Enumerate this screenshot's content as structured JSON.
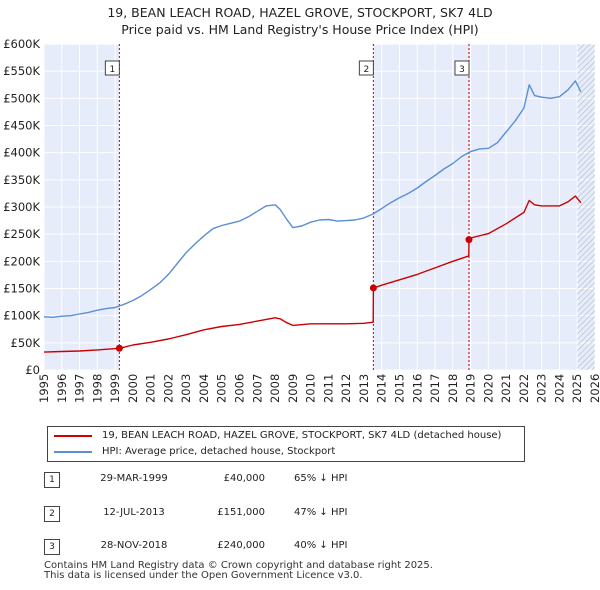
{
  "title_line1": "19, BEAN LEACH ROAD, HAZEL GROVE, STOCKPORT, SK7 4LD",
  "title_line2": "Price paid vs. HM Land Registry's House Price Index (HPI)",
  "colors": {
    "hpi": "#5b8fd4",
    "price": "#cc0000",
    "band": "#e6ecfa",
    "grid": "#ffffff",
    "marker_border": "#444444",
    "hatch": "#b0b8c8"
  },
  "legend": {
    "price_label": "19, BEAN LEACH ROAD, HAZEL GROVE, STOCKPORT, SK7 4LD (detached house)",
    "hpi_label": "HPI: Average price, detached house, Stockport"
  },
  "sales": [
    {
      "num": "1",
      "date": "29-MAR-1999",
      "price": "£40,000",
      "hpi_note": "65% ↓ HPI"
    },
    {
      "num": "2",
      "date": "12-JUL-2013",
      "price": "£151,000",
      "hpi_note": "47% ↓ HPI"
    },
    {
      "num": "3",
      "date": "28-NOV-2018",
      "price": "£240,000",
      "hpi_note": "40% ↓ HPI"
    }
  ],
  "footer": {
    "line1": "Contains HM Land Registry data © Crown copyright and database right 2025.",
    "line2": "This data is licensed under the Open Government Licence v3.0."
  },
  "chart_data": {
    "type": "line",
    "title": "19, BEAN LEACH ROAD, HAZEL GROVE, STOCKPORT, SK7 4LD — Price paid vs. HM Land Registry's House Price Index (HPI)",
    "xlabel": "",
    "ylabel": "",
    "xlim": [
      1995,
      2026
    ],
    "ylim": [
      0,
      600000
    ],
    "x_ticks": [
      1995,
      1996,
      1997,
      1998,
      1999,
      2000,
      2001,
      2002,
      2003,
      2004,
      2005,
      2006,
      2007,
      2008,
      2009,
      2010,
      2011,
      2012,
      2013,
      2014,
      2015,
      2016,
      2017,
      2018,
      2019,
      2020,
      2021,
      2022,
      2023,
      2024,
      2025,
      2026
    ],
    "y_ticks": [
      0,
      50000,
      100000,
      150000,
      200000,
      250000,
      300000,
      350000,
      400000,
      450000,
      500000,
      550000,
      600000
    ],
    "y_tick_labels": [
      "£0",
      "£50K",
      "£100K",
      "£150K",
      "£200K",
      "£250K",
      "£300K",
      "£350K",
      "£400K",
      "£450K",
      "£500K",
      "£550K",
      "£600K"
    ],
    "hatch_from": 2025.0,
    "series": [
      {
        "name": "HPI: Average price, detached house, Stockport",
        "x": [
          1995,
          1995.5,
          1996,
          1996.5,
          1997,
          1997.5,
          1998,
          1998.5,
          1999,
          1999.5,
          2000,
          2000.5,
          2001,
          2001.5,
          2002,
          2002.5,
          2003,
          2003.5,
          2004,
          2004.5,
          2005,
          2005.5,
          2006,
          2006.5,
          2007,
          2007.5,
          2008,
          2008.3,
          2008.6,
          2009,
          2009.5,
          2010,
          2010.5,
          2011,
          2011.5,
          2012,
          2012.5,
          2013,
          2013.5,
          2014,
          2014.5,
          2015,
          2015.5,
          2016,
          2016.5,
          2017,
          2017.5,
          2018,
          2018.5,
          2019,
          2019.5,
          2020,
          2020.5,
          2021,
          2021.5,
          2022,
          2022.3,
          2022.6,
          2023,
          2023.5,
          2024,
          2024.5,
          2024.9,
          2025.2
        ],
        "values": [
          98000,
          97000,
          99000,
          100000,
          103000,
          106000,
          110000,
          113000,
          115000,
          121000,
          128000,
          137000,
          148000,
          160000,
          176000,
          196000,
          216000,
          232000,
          247000,
          260000,
          266000,
          270000,
          274000,
          282000,
          292000,
          302000,
          304000,
          295000,
          280000,
          262000,
          265000,
          272000,
          276000,
          277000,
          274000,
          275000,
          276000,
          280000,
          287000,
          297000,
          308000,
          317000,
          325000,
          335000,
          347000,
          358000,
          370000,
          380000,
          393000,
          402000,
          407000,
          408000,
          418000,
          438000,
          458000,
          482000,
          525000,
          505000,
          502000,
          500000,
          503000,
          516000,
          532000,
          512000
        ]
      },
      {
        "name": "19, BEAN LEACH ROAD, HAZEL GROVE, STOCKPORT, SK7 4LD (detached house)",
        "x": [
          1995,
          1996,
          1997,
          1998,
          1999.24,
          1999.5,
          2000,
          2001,
          2002,
          2003,
          2004,
          2005,
          2006,
          2007,
          2008,
          2008.3,
          2008.6,
          2009,
          2010,
          2011,
          2012,
          2013,
          2013.52,
          2013.53,
          2014,
          2015,
          2016,
          2017,
          2018,
          2018.9,
          2018.91,
          2019,
          2020,
          2021,
          2022,
          2022.3,
          2022.6,
          2023,
          2024,
          2024.5,
          2024.9,
          2025.2
        ],
        "values": [
          33000,
          34000,
          35000,
          37000,
          40000,
          42000,
          46000,
          51000,
          57000,
          65000,
          74000,
          80000,
          84000,
          90000,
          96000,
          94000,
          88000,
          82000,
          85000,
          85000,
          85000,
          86000,
          88000,
          151000,
          156000,
          166000,
          176000,
          188000,
          200000,
          210000,
          240000,
          243000,
          251000,
          269000,
          290000,
          312000,
          304000,
          302000,
          302000,
          310000,
          320000,
          308000
        ]
      }
    ],
    "sale_markers": [
      {
        "label": "1",
        "x": 1999.24,
        "value": 40000
      },
      {
        "label": "2",
        "x": 2013.53,
        "value": 151000
      },
      {
        "label": "3",
        "x": 2018.91,
        "value": 240000
      }
    ]
  }
}
